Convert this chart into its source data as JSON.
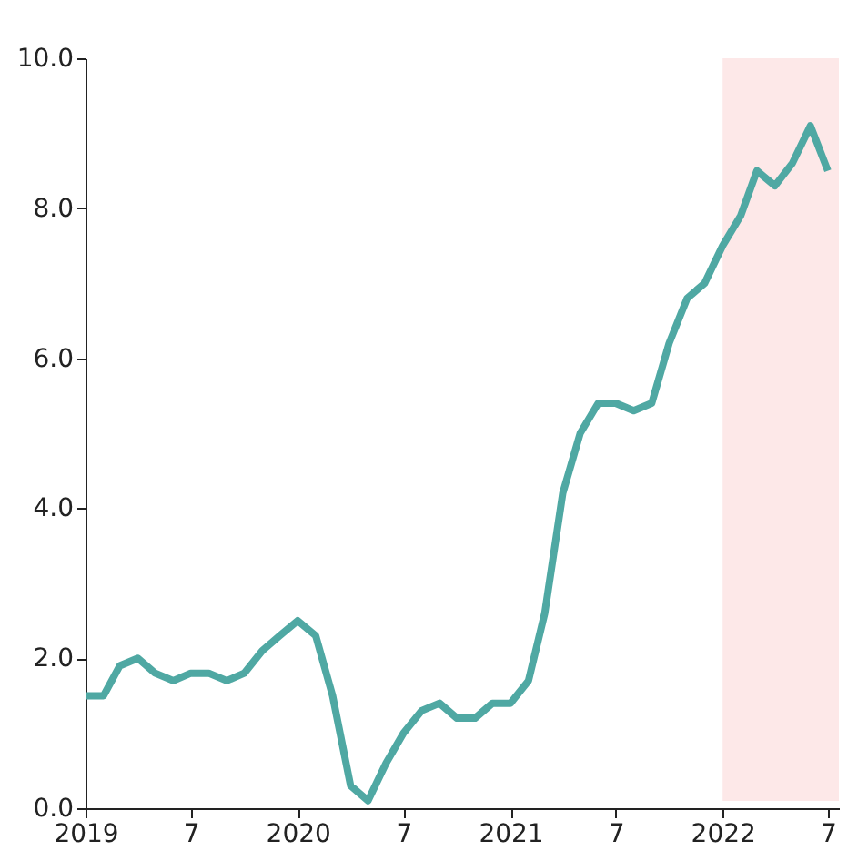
{
  "chart_data": {
    "type": "line",
    "x": [
      "2019-01",
      "2019-02",
      "2019-03",
      "2019-04",
      "2019-05",
      "2019-06",
      "2019-07",
      "2019-08",
      "2019-09",
      "2019-10",
      "2019-11",
      "2019-12",
      "2020-01",
      "2020-02",
      "2020-03",
      "2020-04",
      "2020-05",
      "2020-06",
      "2020-07",
      "2020-08",
      "2020-09",
      "2020-10",
      "2020-11",
      "2020-12",
      "2021-01",
      "2021-02",
      "2021-03",
      "2021-04",
      "2021-05",
      "2021-06",
      "2021-07",
      "2021-08",
      "2021-09",
      "2021-10",
      "2021-11",
      "2021-12",
      "2022-01",
      "2022-02",
      "2022-03",
      "2022-04",
      "2022-05",
      "2022-06",
      "2022-07"
    ],
    "series": [
      {
        "color": "#4fa8a3",
        "values": [
          1.5,
          1.5,
          1.9,
          2.0,
          1.8,
          1.7,
          1.8,
          1.8,
          1.7,
          1.8,
          2.1,
          2.3,
          2.5,
          2.3,
          1.5,
          0.3,
          0.1,
          0.6,
          1.0,
          1.3,
          1.4,
          1.2,
          1.2,
          1.4,
          1.4,
          1.7,
          2.6,
          4.2,
          5.0,
          5.4,
          5.4,
          5.3,
          5.4,
          6.2,
          6.8,
          7.0,
          7.5,
          7.9,
          8.5,
          8.3,
          8.6,
          9.1,
          8.5
        ]
      }
    ],
    "xlim": [
      "2019-01",
      "2022-07-20"
    ],
    "xticks": [
      {
        "value": "2019-01",
        "label": "2019"
      },
      {
        "value": "2019-07",
        "label": "7"
      },
      {
        "value": "2020-01",
        "label": "2020"
      },
      {
        "value": "2020-07",
        "label": "7"
      },
      {
        "value": "2021-01",
        "label": "2021"
      },
      {
        "value": "2021-07",
        "label": "7"
      },
      {
        "value": "2022-01",
        "label": "2022"
      },
      {
        "value": "2022-07",
        "label": "7"
      }
    ],
    "ylim": [
      0,
      10
    ],
    "yticks": [
      {
        "value": 0,
        "label": "0.0"
      },
      {
        "value": 2,
        "label": "2.0"
      },
      {
        "value": 4,
        "label": "4.0"
      },
      {
        "value": 6,
        "label": "6.0"
      },
      {
        "value": 8,
        "label": "8.0"
      },
      {
        "value": 10,
        "label": "10.0"
      }
    ],
    "bands": [
      {
        "axis": "x",
        "from": "2022-01",
        "to": "2022-07-20",
        "color": "#fde8e8"
      }
    ],
    "grid": false,
    "legend": false,
    "marker": "none",
    "line_style": "solid"
  }
}
